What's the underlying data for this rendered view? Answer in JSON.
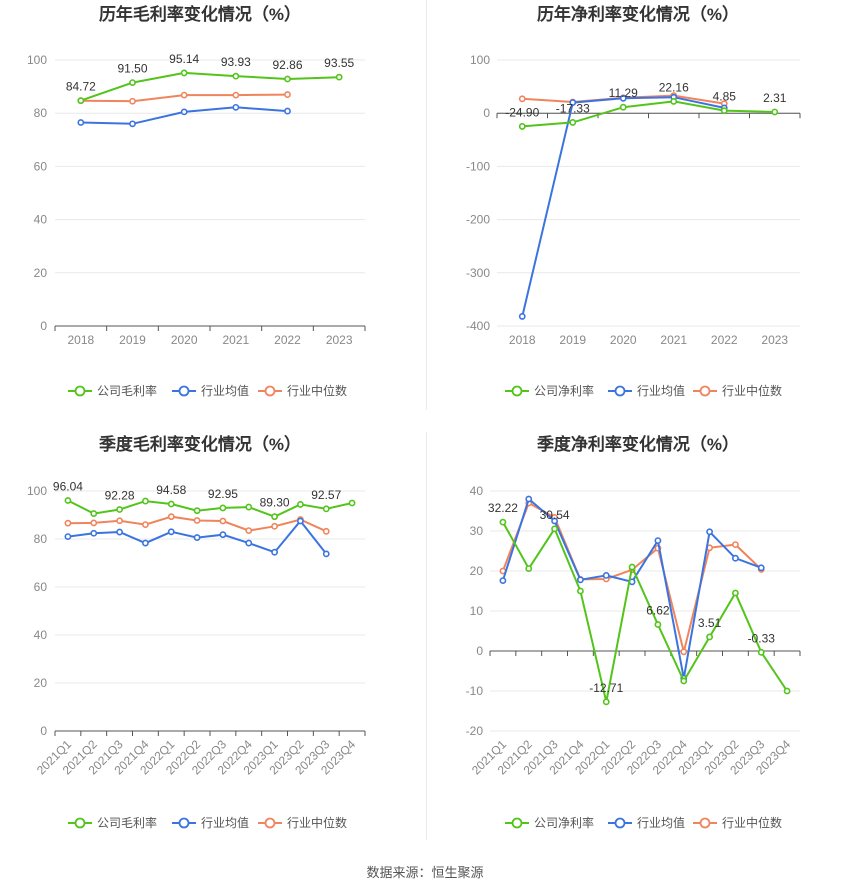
{
  "source_text": "数据来源：恒生聚源",
  "colors": {
    "company": "#52c41a",
    "industry_avg": "#3b74e0",
    "industry_median": "#f0845c",
    "grid": "#e8e8e8",
    "axis_text": "#888888",
    "title_text": "#333333"
  },
  "chart_data": [
    {
      "id": "annual-gross-margin",
      "type": "line",
      "title": "历年毛利率变化情况（%）",
      "categories": [
        "2018",
        "2019",
        "2020",
        "2021",
        "2022",
        "2023"
      ],
      "ylim": [
        0,
        100
      ],
      "yticks": [
        0,
        20,
        40,
        60,
        80,
        100
      ],
      "grid": true,
      "legend_position": "bottom",
      "series": [
        {
          "name": "公司毛利率",
          "values": [
            84.72,
            91.5,
            95.14,
            93.93,
            92.86,
            93.55
          ],
          "labels": [
            "84.72",
            "91.50",
            "95.14",
            "93.93",
            "92.86",
            "93.55"
          ]
        },
        {
          "name": "行业均值",
          "values": [
            76.5,
            76.0,
            80.5,
            82.2,
            80.8,
            null
          ]
        },
        {
          "name": "行业中位数",
          "values": [
            84.7,
            84.5,
            86.8,
            86.8,
            87.0,
            null
          ]
        }
      ]
    },
    {
      "id": "annual-net-margin",
      "type": "line",
      "title": "历年净利率变化情况（%）",
      "categories": [
        "2018",
        "2019",
        "2020",
        "2021",
        "2022",
        "2023"
      ],
      "ylim": [
        -400,
        100
      ],
      "yticks": [
        -400,
        -300,
        -200,
        -100,
        0,
        100
      ],
      "grid": true,
      "legend_position": "bottom",
      "series": [
        {
          "name": "公司净利率",
          "values": [
            -24.9,
            -17.33,
            11.29,
            22.16,
            4.85,
            2.31
          ],
          "labels": [
            "-24.90",
            "-17.33",
            "11.29",
            "22.16",
            "4.85",
            "2.31"
          ]
        },
        {
          "name": "行业均值",
          "values": [
            -382,
            20,
            28,
            30,
            10,
            null
          ]
        },
        {
          "name": "行业中位数",
          "values": [
            27,
            21,
            29,
            33,
            18,
            null
          ]
        }
      ]
    },
    {
      "id": "quarterly-gross-margin",
      "type": "line",
      "title": "季度毛利率变化情况（%）",
      "categories": [
        "2021Q1",
        "2021Q2",
        "2021Q3",
        "2021Q4",
        "2022Q1",
        "2022Q2",
        "2022Q3",
        "2022Q4",
        "2023Q1",
        "2023Q2",
        "2023Q3",
        "2023Q4"
      ],
      "ylim": [
        0,
        100
      ],
      "yticks": [
        0,
        20,
        40,
        60,
        80,
        100
      ],
      "grid": true,
      "legend_position": "bottom",
      "series": [
        {
          "name": "公司毛利率",
          "values": [
            96.04,
            90.6,
            92.28,
            95.8,
            94.58,
            91.8,
            92.95,
            93.3,
            89.3,
            94.4,
            92.57,
            95.0
          ],
          "labels": [
            "96.04",
            "",
            "92.28",
            "",
            "94.58",
            "",
            "92.95",
            "",
            "89.30",
            "",
            "92.57",
            ""
          ]
        },
        {
          "name": "行业均值",
          "values": [
            81.0,
            82.4,
            82.9,
            78.3,
            83.0,
            80.6,
            81.8,
            78.3,
            74.5,
            87.5,
            73.8,
            null
          ]
        },
        {
          "name": "行业中位数",
          "values": [
            86.6,
            86.7,
            87.6,
            86.0,
            89.3,
            87.7,
            87.5,
            83.5,
            85.3,
            88.1,
            83.2,
            null
          ]
        }
      ]
    },
    {
      "id": "quarterly-net-margin",
      "type": "line",
      "title": "季度净利率变化情况（%）",
      "categories": [
        "2021Q1",
        "2021Q2",
        "2021Q3",
        "2021Q4",
        "2022Q1",
        "2022Q2",
        "2022Q3",
        "2022Q4",
        "2023Q1",
        "2023Q2",
        "2023Q3",
        "2023Q4"
      ],
      "ylim": [
        -20,
        40
      ],
      "yticks": [
        -20,
        -10,
        0,
        10,
        20,
        30,
        40
      ],
      "grid": true,
      "legend_position": "bottom",
      "series": [
        {
          "name": "公司净利率",
          "values": [
            32.22,
            20.6,
            30.54,
            15.0,
            -12.71,
            21.0,
            6.62,
            -7.5,
            3.51,
            14.5,
            -0.33,
            -10.0
          ],
          "labels": [
            "32.22",
            "",
            "30.54",
            "",
            "-12.71",
            "",
            "6.62",
            "",
            "3.51",
            "",
            "-0.33",
            ""
          ]
        },
        {
          "name": "行业均值",
          "values": [
            17.6,
            38.0,
            32.5,
            17.8,
            18.9,
            17.3,
            27.6,
            -6.8,
            29.8,
            23.2,
            20.8,
            null
          ]
        },
        {
          "name": "行业中位数",
          "values": [
            20.0,
            37.0,
            33.4,
            17.9,
            18.0,
            20.3,
            25.7,
            -0.2,
            25.8,
            26.6,
            20.4,
            null
          ]
        }
      ]
    }
  ]
}
